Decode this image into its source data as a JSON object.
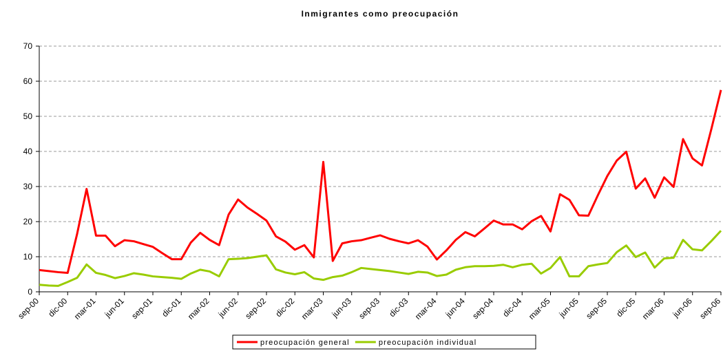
{
  "chart_data": {
    "type": "line",
    "title": "Inmigrantes como preocupación",
    "categories": [
      "sep-00",
      null,
      null,
      "dic-00",
      null,
      null,
      "mar-01",
      null,
      null,
      "jun-01",
      null,
      null,
      "sep-01",
      null,
      null,
      "dic-01",
      null,
      null,
      "mar-02",
      null,
      null,
      "jun-02",
      null,
      null,
      "sep-02",
      null,
      null,
      "dic-02",
      null,
      null,
      "mar-03",
      null,
      null,
      "jun-03",
      null,
      null,
      "sep-03",
      null,
      null,
      "dic-03",
      null,
      null,
      "mar-04",
      null,
      null,
      "jun-04",
      null,
      null,
      "sep-04",
      null,
      null,
      "dic-04",
      null,
      null,
      "mar-05",
      null,
      null,
      "jun-05",
      null,
      null,
      "sep-05",
      null,
      null,
      "dic-05",
      null,
      null,
      "mar-06",
      null,
      null,
      "jun-06",
      null,
      null,
      "sep-06"
    ],
    "series": [
      {
        "name": "preocupación general",
        "color": "#ff0000",
        "values": [
          6.2,
          5.9,
          5.6,
          5.4,
          16.5,
          29.3,
          16,
          16,
          13,
          14.7,
          14.4,
          13.6,
          12.8,
          11,
          9.3,
          9.3,
          14,
          16.8,
          14.8,
          13.3,
          22,
          26.3,
          24,
          22.2,
          20.3,
          15.8,
          14.3,
          12,
          13.3,
          9.8,
          37,
          8.8,
          13.8,
          14.4,
          14.7,
          15.4,
          16.1,
          15.1,
          14.4,
          13.8,
          14.7,
          12.9,
          9.2,
          11.8,
          14.8,
          17,
          15.8,
          18,
          20.3,
          19.2,
          19.2,
          17.8,
          20.1,
          21.6,
          17.2,
          27.8,
          26.2,
          21.8,
          21.7,
          27.5,
          33,
          37.4,
          39.9,
          29.4,
          32.3,
          26.8,
          32.6,
          29.9,
          43.5,
          38,
          36,
          46.5,
          57.5
        ]
      },
      {
        "name": "preocupación individual",
        "color": "#99cc00",
        "values": [
          2,
          1.8,
          1.7,
          2.8,
          4,
          7.8,
          5.4,
          4.8,
          3.9,
          4.5,
          5.3,
          4.9,
          4.4,
          4.2,
          4,
          3.7,
          5.2,
          6.3,
          5.8,
          4.4,
          9.3,
          9.4,
          9.6,
          10,
          10.4,
          6.4,
          5.5,
          5,
          5.6,
          3.8,
          3.4,
          4.2,
          4.6,
          5.6,
          6.8,
          6.5,
          6.2,
          5.9,
          5.5,
          5.1,
          5.7,
          5.5,
          4.5,
          4.9,
          6.3,
          7,
          7.3,
          7.3,
          7.4,
          7.7,
          7,
          7.7,
          8,
          5.2,
          6.8,
          9.9,
          4.4,
          4.4,
          7.3,
          7.8,
          8.2,
          11.3,
          13.2,
          9.9,
          11.2,
          6.9,
          9.5,
          9.7,
          14.8,
          12.1,
          11.8,
          14.5,
          17.4
        ]
      }
    ],
    "ylim": [
      0,
      70
    ],
    "yticks": [
      0,
      10,
      20,
      30,
      40,
      50,
      60,
      70
    ],
    "grid": true,
    "legend": "bottom"
  }
}
